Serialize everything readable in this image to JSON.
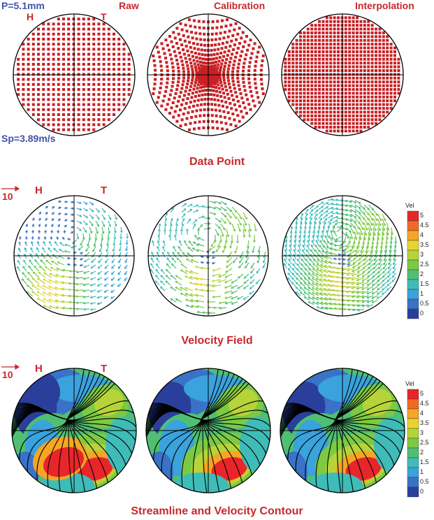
{
  "params": {
    "pressure": "P=5.1mm",
    "speed": "Sp=3.89m/s"
  },
  "columns": {
    "raw": "Raw",
    "calibration": "Calibration",
    "interpolation": "Interpolation"
  },
  "markers": {
    "h": "H",
    "t": "T"
  },
  "scale_label": "10",
  "sections": {
    "data_point": "Data Point",
    "velocity_field": "Velocity Field",
    "streamline": "Streamline and Velocity Contour"
  },
  "legend": {
    "title": "Vel",
    "values": [
      "5",
      "4.5",
      "4",
      "3.5",
      "3",
      "2.5",
      "2",
      "1.5",
      "1",
      "0.5",
      "0"
    ],
    "colors": [
      "#e8262a",
      "#f06a26",
      "#f5a623",
      "#e8d430",
      "#b6d43a",
      "#7cc943",
      "#4fbf72",
      "#3fbcb8",
      "#3aa2dc",
      "#3a72c8",
      "#2a3f9c"
    ]
  },
  "colors": {
    "label_red": "#c8282d",
    "label_blue": "#4252a8",
    "point_red": "#c82024"
  }
}
